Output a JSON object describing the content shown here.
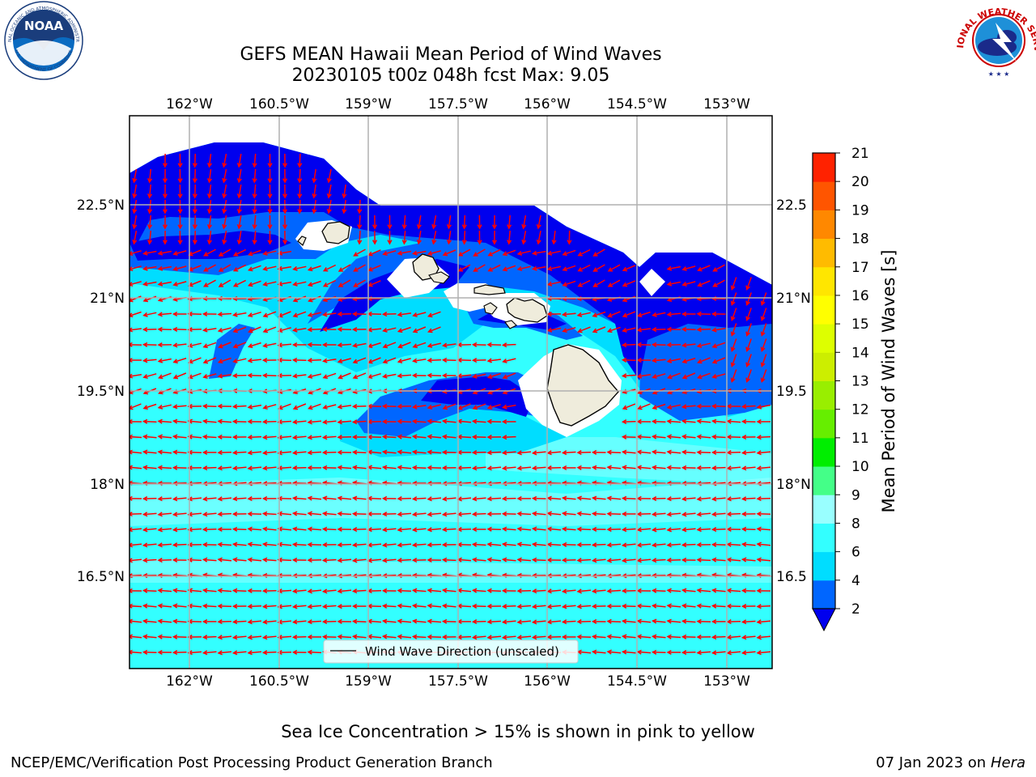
{
  "title": {
    "line1": "GEFS MEAN Hawaii Mean Period of Wind Waves",
    "line2": "20230105 t00z 048h fcst   Max: 9.05"
  },
  "map": {
    "lon_ticks": [
      "162°W",
      "160.5°W",
      "159°W",
      "157.5°W",
      "156°W",
      "154.5°W",
      "153°W"
    ],
    "lat_ticks": [
      "22.5°N",
      "21°N",
      "19.5°N",
      "18°N",
      "16.5°N"
    ],
    "lat_ticks_right_truncated": [
      "22.5",
      "21°N",
      "19.5",
      "18°N",
      "16.5"
    ],
    "legend_label": "Wind Wave Direction (unscaled)",
    "wave_direction_toward": "west",
    "land_color": "#efecdc",
    "arrow_color": "#ff0000"
  },
  "colorbar": {
    "label": "Mean Period of Wind Waves [s]",
    "tick_labels": [
      "2",
      "4",
      "6",
      "8",
      "9",
      "10",
      "11",
      "12",
      "13",
      "14",
      "15",
      "16",
      "17",
      "18",
      "19",
      "20",
      "21"
    ],
    "colors": [
      "#0066ff",
      "#00ddff",
      "#33ffff",
      "#99ffff",
      "#44ff88",
      "#00ee00",
      "#66ee00",
      "#99ee00",
      "#ccee00",
      "#ddff00",
      "#ffff00",
      "#ffe600",
      "#ffbb00",
      "#ff8800",
      "#ff5500",
      "#ff2200",
      "#ff0000"
    ],
    "under_color": "#0000ee"
  },
  "chart_data": {
    "type": "heatmap",
    "title": "GEFS MEAN Hawaii Mean Period of Wind Waves",
    "subtitle": "20230105 t00z 048h fcst   Max: 9.05",
    "variable": "Mean Period of Wind Waves [s]",
    "max_value": 9.05,
    "colorbar_levels": [
      2,
      4,
      6,
      8,
      9,
      10,
      11,
      12,
      13,
      14,
      15,
      16,
      17,
      18,
      19,
      20,
      21
    ],
    "lon_ticks": [
      "162°W",
      "160.5°W",
      "159°W",
      "157.5°W",
      "156°W",
      "154.5°W",
      "153°W"
    ],
    "lat_ticks": [
      "22.5°N",
      "21°N",
      "19.5°N",
      "18°N",
      "16.5°N"
    ],
    "grid": true
  },
  "footer": {
    "subtitle": "Sea Ice Concentration > 15% is shown in pink to yellow",
    "left": "NCEP/EMC/Verification Post Processing Product Generation Branch",
    "right_date": "07 Jan 2023 on",
    "right_host": "Hera"
  },
  "logos": {
    "noaa_text": "NOAA",
    "noaa_ring_text": "NATIONAL OCEANIC AND ATMOSPHERIC ADMINISTRATION",
    "noaa_ring_bottom": "U.S. DEPARTMENT OF COMMERCE",
    "nws_ring_text": "NATIONAL WEATHER SERVICE"
  }
}
